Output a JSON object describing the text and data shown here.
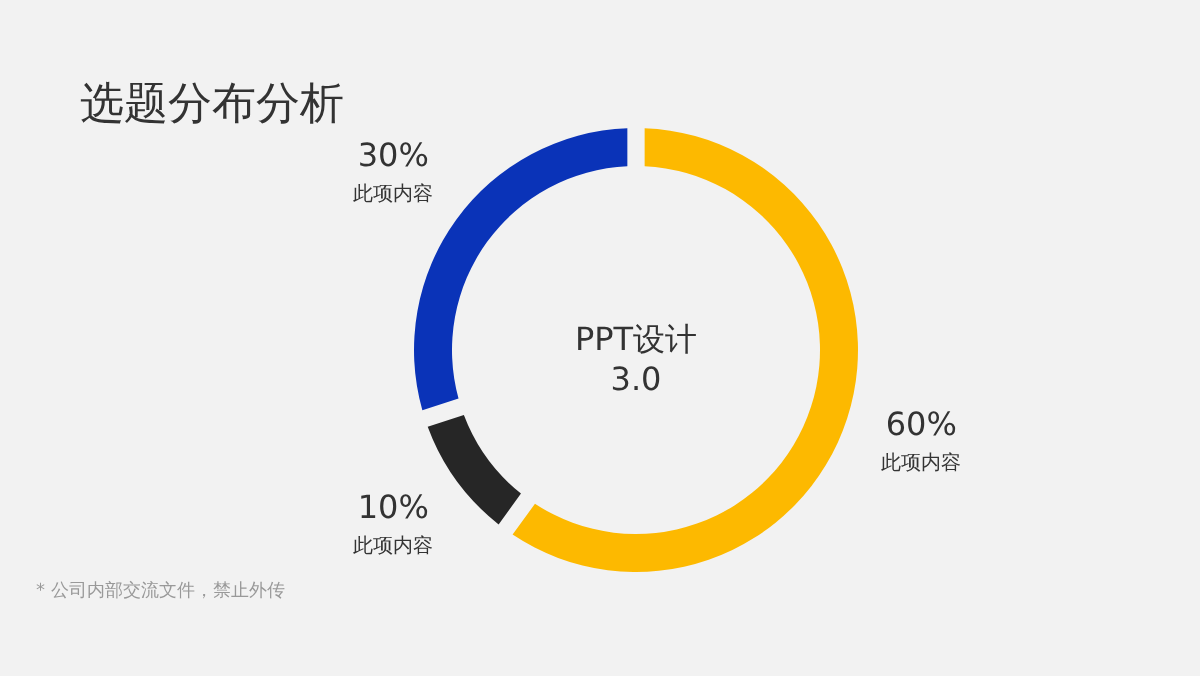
{
  "chart_data": {
    "type": "donut",
    "title": "选题分布分析",
    "categories": [
      "此项内容",
      "此项内容",
      "此项内容"
    ],
    "values": [
      60,
      10,
      30
    ],
    "value_labels": [
      "60%",
      "10%",
      "30%"
    ],
    "colors": [
      "#fdb900",
      "#262626",
      "#0a33b8"
    ],
    "annotations": [
      "PPT设计",
      "3.0",
      "* 公司内部交流文件，禁止外传"
    ]
  }
}
